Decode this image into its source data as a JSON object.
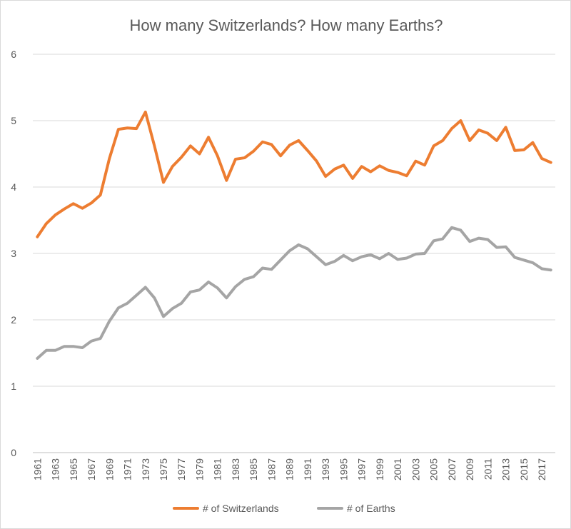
{
  "chart_data": {
    "type": "line",
    "title": "How many Switzerlands? How many Earths?",
    "xlabel": "",
    "ylabel": "",
    "ylim": [
      0,
      6
    ],
    "yticks": [
      0,
      1,
      2,
      3,
      4,
      5,
      6
    ],
    "grid": true,
    "legend_position": "bottom",
    "x": [
      1961,
      1962,
      1963,
      1964,
      1965,
      1966,
      1967,
      1968,
      1969,
      1970,
      1971,
      1972,
      1973,
      1974,
      1975,
      1976,
      1977,
      1978,
      1979,
      1980,
      1981,
      1982,
      1983,
      1984,
      1985,
      1986,
      1987,
      1988,
      1989,
      1990,
      1991,
      1992,
      1993,
      1994,
      1995,
      1996,
      1997,
      1998,
      1999,
      2000,
      2001,
      2002,
      2003,
      2004,
      2005,
      2006,
      2007,
      2008,
      2009,
      2010,
      2011,
      2012,
      2013,
      2014,
      2015,
      2016,
      2017,
      2018
    ],
    "xtick_labels": [
      "1961",
      "1963",
      "1965",
      "1967",
      "1969",
      "1971",
      "1973",
      "1975",
      "1977",
      "1979",
      "1981",
      "1983",
      "1985",
      "1987",
      "1989",
      "1991",
      "1993",
      "1995",
      "1997",
      "1999",
      "2001",
      "2003",
      "2005",
      "2007",
      "2009",
      "2011",
      "2013",
      "2015",
      "2017"
    ],
    "series": [
      {
        "name": "# of Switzerlands",
        "color": "#ed7d31",
        "values": [
          3.25,
          3.45,
          3.58,
          3.67,
          3.75,
          3.68,
          3.76,
          3.88,
          4.43,
          4.87,
          4.89,
          4.88,
          5.13,
          4.62,
          4.07,
          4.31,
          4.45,
          4.62,
          4.5,
          4.75,
          4.47,
          4.1,
          4.42,
          4.44,
          4.54,
          4.68,
          4.64,
          4.47,
          4.63,
          4.7,
          4.55,
          4.39,
          4.16,
          4.27,
          4.33,
          4.13,
          4.31,
          4.23,
          4.32,
          4.25,
          4.22,
          4.17,
          4.39,
          4.33,
          4.62,
          4.7,
          4.88,
          5.0,
          4.7,
          4.86,
          4.81,
          4.7,
          4.9,
          4.55,
          4.56,
          4.67,
          4.43,
          4.37
        ]
      },
      {
        "name": "# of Earths",
        "color": "#a5a5a5",
        "values": [
          1.42,
          1.54,
          1.54,
          1.6,
          1.6,
          1.58,
          1.68,
          1.72,
          1.98,
          2.18,
          2.25,
          2.37,
          2.49,
          2.33,
          2.05,
          2.17,
          2.25,
          2.42,
          2.45,
          2.57,
          2.48,
          2.33,
          2.5,
          2.61,
          2.65,
          2.78,
          2.76,
          2.9,
          3.04,
          3.13,
          3.07,
          2.95,
          2.83,
          2.88,
          2.97,
          2.89,
          2.95,
          2.98,
          2.92,
          3.0,
          2.91,
          2.93,
          2.99,
          3.0,
          3.19,
          3.22,
          3.39,
          3.35,
          3.18,
          3.23,
          3.21,
          3.09,
          3.1,
          2.94,
          2.9,
          2.86,
          2.77,
          2.75
        ]
      }
    ]
  }
}
